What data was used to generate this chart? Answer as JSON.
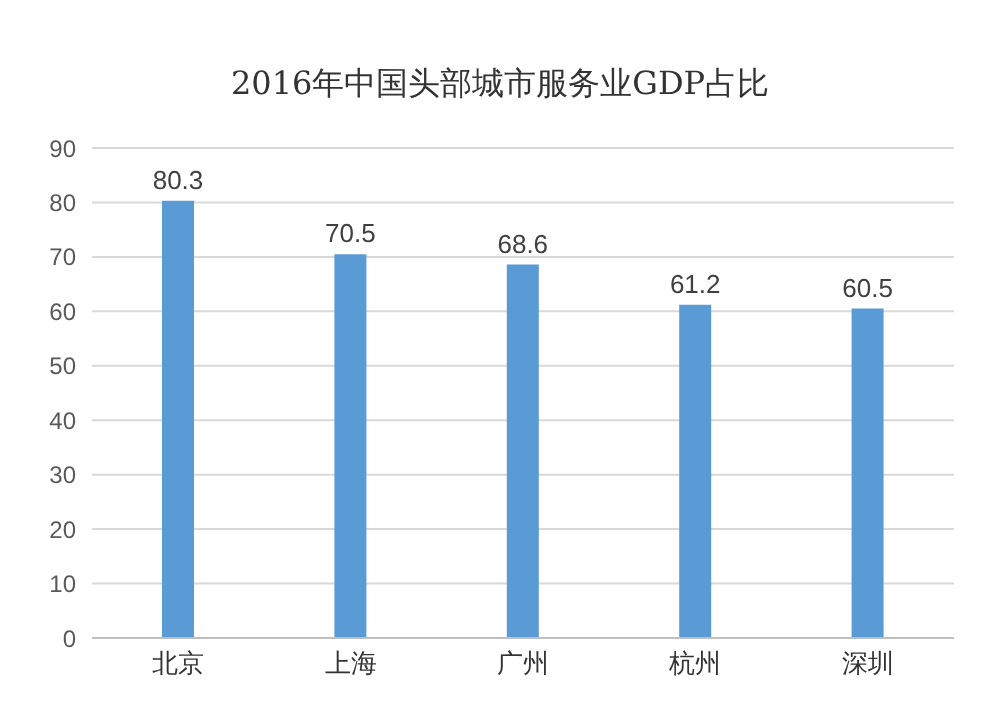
{
  "chart_data": {
    "type": "bar",
    "title": "2016年中国头部城市服务业GDP占比",
    "categories": [
      "北京",
      "上海",
      "广州",
      "杭州",
      "深圳"
    ],
    "values": [
      80.3,
      70.5,
      68.6,
      61.2,
      60.5
    ],
    "color": "#5b9bd5",
    "ylim": [
      0,
      90
    ],
    "yticks": [
      0,
      10,
      20,
      30,
      40,
      50,
      60,
      70,
      80,
      90
    ],
    "grid": "y",
    "data_labels": true
  }
}
